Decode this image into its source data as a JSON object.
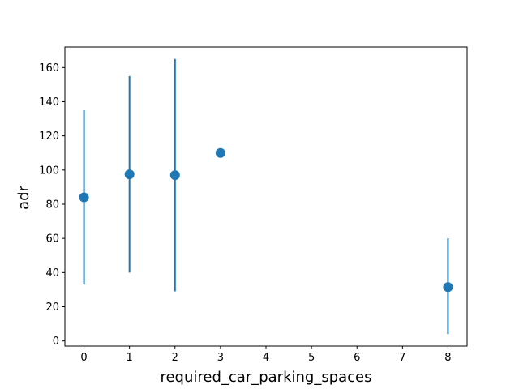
{
  "chart_data": {
    "type": "scatter",
    "title": "",
    "xlabel": "required_car_parking_spaces",
    "ylabel": "adr",
    "xlim": [
      -0.42,
      8.42
    ],
    "ylim": [
      -3,
      172
    ],
    "x_ticks": [
      0,
      1,
      2,
      3,
      4,
      5,
      6,
      7,
      8
    ],
    "y_ticks": [
      0,
      20,
      40,
      60,
      80,
      100,
      120,
      140,
      160
    ],
    "grid": false,
    "legend": "none",
    "color": "#1f77b4",
    "points": [
      {
        "x": 0,
        "y": 84.0,
        "err_low": 33.0,
        "err_high": 135.0
      },
      {
        "x": 1,
        "y": 97.5,
        "err_low": 40.0,
        "err_high": 155.0
      },
      {
        "x": 2,
        "y": 97.0,
        "err_low": 29.0,
        "err_high": 165.0
      },
      {
        "x": 3,
        "y": 110.0,
        "err_low": null,
        "err_high": null
      },
      {
        "x": 8,
        "y": 31.5,
        "err_low": 4.0,
        "err_high": 60.0
      }
    ]
  }
}
